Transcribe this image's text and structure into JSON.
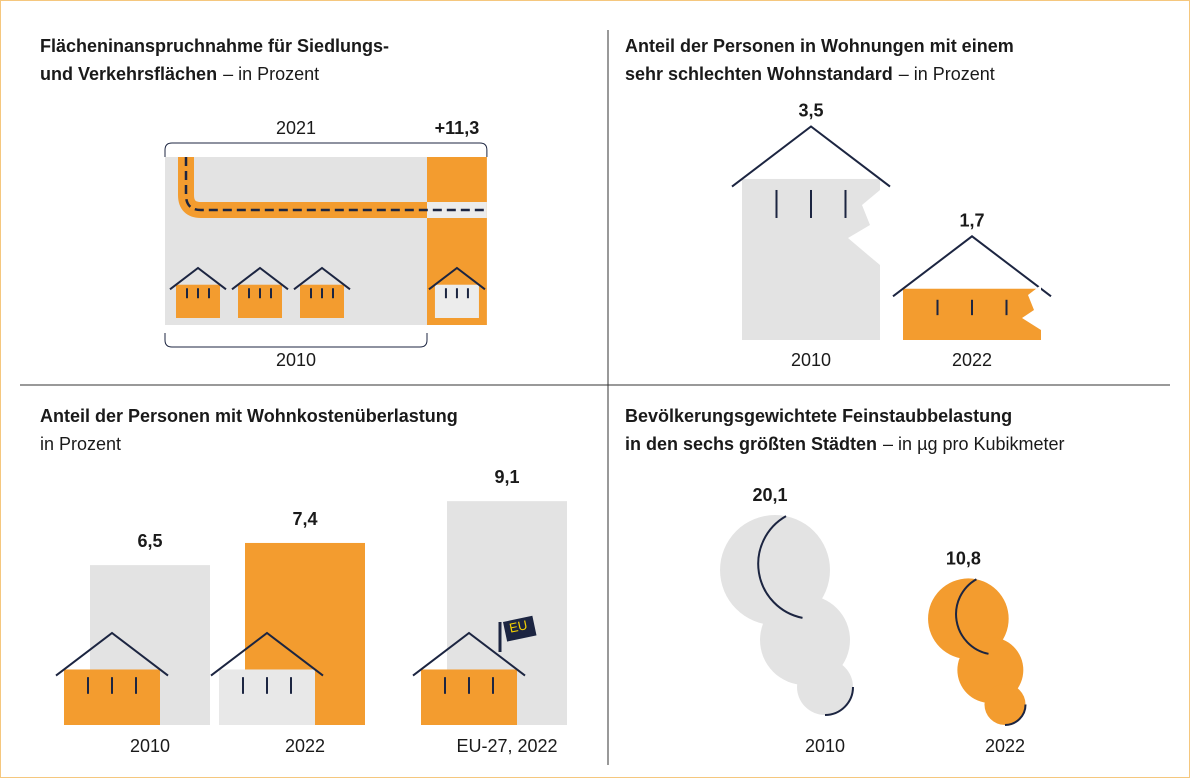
{
  "chart_data": [
    {
      "type": "area",
      "title": [
        "Flächeninanspruchnahme für Siedlungs-",
        "und Verkehrsflächen"
      ],
      "subtitle": "– in Prozent",
      "base_label": "2010",
      "end_label": "2021",
      "value": 11.3,
      "value_label": "+11,3",
      "color": "#f39c2f"
    },
    {
      "type": "house",
      "title": [
        "Anteil der Personen in Wohnungen mit einem",
        "sehr schlechten Wohnstandard"
      ],
      "subtitle": "– in Prozent",
      "categories": [
        "2010",
        "2022"
      ],
      "values": [
        3.5,
        1.7
      ],
      "value_labels": [
        "3,5",
        "1,7"
      ],
      "colors": [
        "#e3e3e3",
        "#f39c2f"
      ]
    },
    {
      "type": "bar",
      "title": [
        "Anteil der Personen mit Wohnkostenüberlastung"
      ],
      "subtitle": "in Prozent",
      "categories": [
        "2010",
        "2022",
        "EU-27, 2022"
      ],
      "values": [
        6.5,
        7.4,
        9.1
      ],
      "value_labels": [
        "6,5",
        "7,4",
        "9,1"
      ],
      "colors": [
        "#e3e3e3",
        "#f39c2f",
        "#e3e3e3"
      ],
      "flag_label": "EU"
    },
    {
      "type": "bubble",
      "title": [
        "Bevölkerungsgewichtete Feinstaubbelastung",
        "in den sechs größten Städten"
      ],
      "subtitle": "– in µg pro Kubikmeter",
      "categories": [
        "2010",
        "2022"
      ],
      "values": [
        20.1,
        10.8
      ],
      "value_labels": [
        "20,1",
        "10,8"
      ],
      "colors": [
        "#e3e3e3",
        "#f39c2f"
      ]
    }
  ]
}
